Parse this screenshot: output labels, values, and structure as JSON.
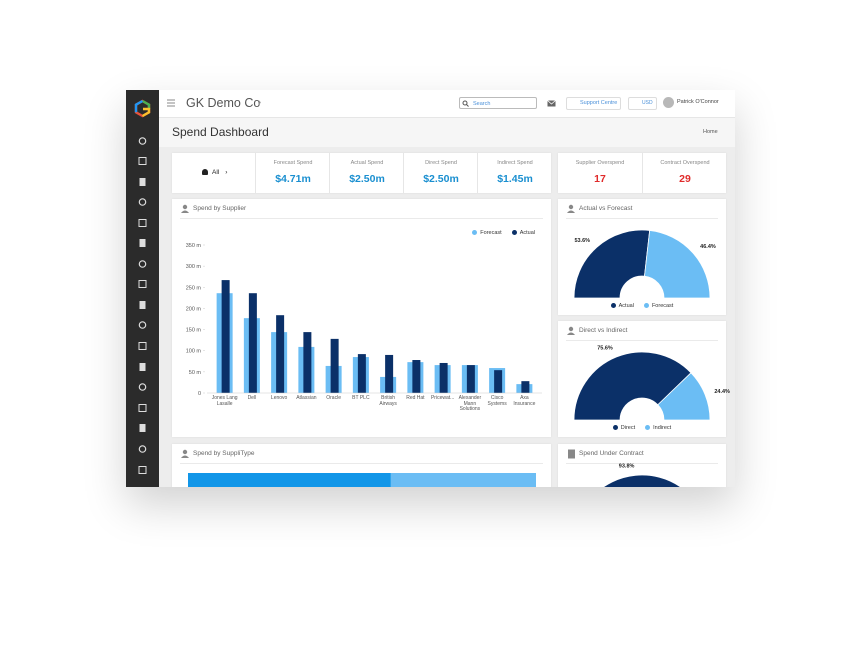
{
  "app": {
    "company": "GK Demo Co",
    "search_placeholder": "Search",
    "support": "Support Centre",
    "currency": "USD",
    "user": "Patrick O'Connor",
    "page_title": "Spend Dashboard",
    "breadcrumb": "Home",
    "filter": "All"
  },
  "kpis": [
    {
      "label": "Forecast Spend",
      "value": "$4.71m"
    },
    {
      "label": "Actual Spend",
      "value": "$2.50m"
    },
    {
      "label": "Direct Spend",
      "value": "$2.50m"
    },
    {
      "label": "Indirect Spend",
      "value": "$1.45m"
    }
  ],
  "overspend": [
    {
      "label": "Supplier Overspend",
      "value": "17"
    },
    {
      "label": "Contract Overspend",
      "value": "29"
    }
  ],
  "chart_data": [
    {
      "type": "bar",
      "title": "Spend by Supplier",
      "categories": [
        "Jones Lang Lasalle",
        "Dell",
        "Lenovo",
        "Atlassian",
        "Oracle",
        "BT PLC",
        "British Airways",
        "Red Hat",
        "Pricewat...",
        "Alexander Mann Solutions",
        "Cisco Systems",
        "Axa Insurance"
      ],
      "series": [
        {
          "name": "Forecast",
          "color": "#6bbdf4",
          "values": [
            236,
            177,
            144,
            109,
            64,
            85,
            38,
            73,
            66,
            66,
            59,
            21
          ]
        },
        {
          "name": "Actual",
          "color": "#0b3068",
          "values": [
            267,
            236,
            184,
            144,
            128,
            92,
            90,
            78,
            71,
            66,
            54,
            28
          ]
        }
      ],
      "ylim": [
        0,
        350
      ],
      "yticks": [
        0,
        {
          "value": 50,
          "label": "50 m"
        },
        {
          "value": 100,
          "label": "100 m"
        },
        {
          "value": 150,
          "label": "150 m"
        },
        {
          "value": 200,
          "label": "200 m"
        },
        {
          "value": 250,
          "label": "250 m"
        },
        {
          "value": 300,
          "label": "300 m"
        },
        {
          "value": 350,
          "label": "350 m"
        }
      ]
    },
    {
      "type": "semidonut",
      "title": "Actual vs Forecast",
      "categories": [
        "Actual",
        "Forecast"
      ],
      "values": [
        53.6,
        46.4
      ],
      "value_labels": [
        "53.6%",
        "46.4%"
      ],
      "colors": [
        "#0b3068",
        "#6bbdf4"
      ]
    },
    {
      "type": "semidonut",
      "title": "Direct vs Indirect",
      "categories": [
        "Direct",
        "Indirect"
      ],
      "values": [
        75.6,
        24.4
      ],
      "value_labels": [
        "75.6%",
        "24.4%"
      ],
      "colors": [
        "#0b3068",
        "#6bbdf4"
      ]
    },
    {
      "type": "stackedbar",
      "title": "Spend by SuppliType",
      "values": [
        58.3,
        41.7
      ],
      "colors": [
        "#1296e8",
        "#6bbdf4"
      ]
    },
    {
      "type": "semidonut",
      "title": "Spend Under Contract",
      "values": [
        93.8
      ],
      "value_labels": [
        "93.8%"
      ],
      "colors": [
        "#0b3068"
      ]
    }
  ]
}
